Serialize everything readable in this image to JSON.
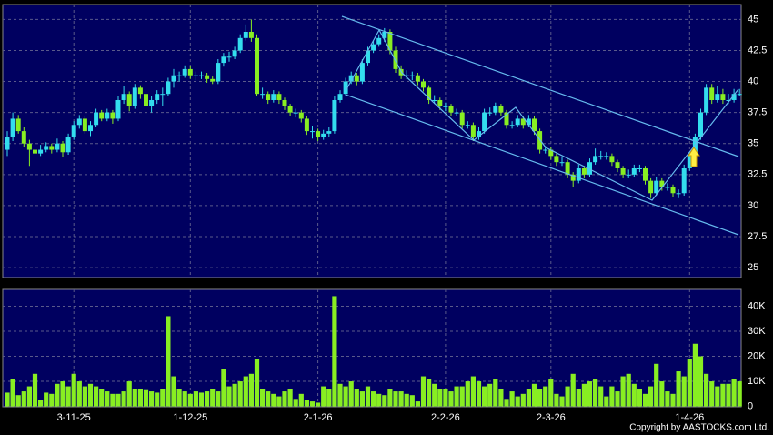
{
  "chart_data": {
    "type": "candlestick",
    "categories": [
      null,
      null,
      null,
      null,
      null,
      null,
      null,
      null,
      null,
      null,
      null,
      null,
      "3-11-25",
      null,
      null,
      null,
      null,
      null,
      null,
      null,
      null,
      null,
      null,
      null,
      null,
      null,
      null,
      null,
      null,
      null,
      null,
      null,
      null,
      "1-12-25",
      null,
      null,
      null,
      null,
      null,
      null,
      null,
      null,
      null,
      null,
      null,
      null,
      null,
      null,
      null,
      null,
      null,
      null,
      null,
      null,
      null,
      null,
      "2-1-26",
      null,
      null,
      null,
      null,
      null,
      null,
      null,
      null,
      null,
      null,
      null,
      null,
      null,
      null,
      null,
      null,
      null,
      null,
      null,
      null,
      null,
      null,
      "2-2-26",
      null,
      null,
      null,
      null,
      null,
      null,
      null,
      null,
      null,
      null,
      null,
      null,
      null,
      null,
      null,
      null,
      null,
      null,
      "2-3-26",
      null,
      null,
      null,
      null,
      null,
      null,
      null,
      null,
      null,
      null,
      null,
      null,
      null,
      null,
      null,
      null,
      null,
      null,
      null,
      null,
      null,
      null,
      null,
      null,
      "1-4-26",
      null,
      null,
      null,
      null,
      null,
      null,
      null,
      null
    ],
    "ohlc": [
      [
        34.5,
        36,
        34,
        35.5
      ],
      [
        35.5,
        37.5,
        35.2,
        37
      ],
      [
        37,
        37.3,
        35.8,
        36
      ],
      [
        36,
        36.3,
        34.7,
        35
      ],
      [
        35,
        35.3,
        33.2,
        34.5
      ],
      [
        34.5,
        34.8,
        33.8,
        34.2
      ],
      [
        34.2,
        34.9,
        34,
        34.5
      ],
      [
        34.5,
        35.1,
        34.3,
        34.8
      ],
      [
        34.8,
        35,
        34.2,
        34.5
      ],
      [
        34.5,
        35.4,
        34.3,
        35
      ],
      [
        35,
        35.2,
        33.9,
        34.3
      ],
      [
        34.3,
        35.8,
        34.1,
        35.5
      ],
      [
        35.5,
        36.8,
        35.3,
        36.5
      ],
      [
        36.5,
        37.3,
        36.2,
        37
      ],
      [
        37,
        37.2,
        35.8,
        36
      ],
      [
        36,
        36.8,
        35.6,
        36.5
      ],
      [
        36.5,
        37.8,
        36.3,
        37.5
      ],
      [
        37.5,
        37.7,
        36.8,
        37
      ],
      [
        37,
        37.8,
        36.8,
        37.5
      ],
      [
        37.5,
        37.7,
        36.6,
        37
      ],
      [
        37,
        38.8,
        36.8,
        38.5
      ],
      [
        38.5,
        39.6,
        38.2,
        39
      ],
      [
        39,
        39.2,
        37.6,
        38
      ],
      [
        38,
        39.8,
        37.8,
        39.5
      ],
      [
        39.5,
        39.7,
        38.6,
        39
      ],
      [
        39,
        39.2,
        37.6,
        38
      ],
      [
        38,
        38.8,
        37.5,
        38.5
      ],
      [
        38.5,
        39.3,
        38.2,
        39
      ],
      [
        39,
        39.5,
        38,
        39
      ],
      [
        39,
        40.3,
        38.8,
        40
      ],
      [
        40,
        41,
        39.5,
        40.5
      ],
      [
        40.5,
        40.8,
        40,
        40.5
      ],
      [
        40.5,
        41.3,
        40.3,
        41
      ],
      [
        41,
        41.2,
        40.2,
        40.5
      ],
      [
        40.5,
        40.8,
        40.1,
        40.5
      ],
      [
        40.5,
        40.8,
        40.2,
        40.5
      ],
      [
        40.5,
        40.7,
        39.9,
        40.2
      ],
      [
        40.2,
        40.4,
        39.8,
        40
      ],
      [
        40,
        41.8,
        39.8,
        41.5
      ],
      [
        41.5,
        42.3,
        41.2,
        42
      ],
      [
        42,
        42.4,
        41.6,
        42
      ],
      [
        42,
        42.8,
        41.8,
        42.5
      ],
      [
        42.5,
        43.8,
        42.3,
        43.5
      ],
      [
        43.5,
        44.6,
        43.3,
        44
      ],
      [
        44,
        45,
        43.2,
        43.5
      ],
      [
        43.5,
        43.8,
        38.8,
        39
      ],
      [
        39,
        39.5,
        38.6,
        39
      ],
      [
        39,
        39.2,
        38.2,
        38.5
      ],
      [
        38.5,
        39.3,
        38.3,
        39
      ],
      [
        39,
        39.2,
        38.2,
        38.5
      ],
      [
        38.5,
        38.7,
        37.7,
        38
      ],
      [
        38,
        38.2,
        37.2,
        37.5
      ],
      [
        37.5,
        37.8,
        37.1,
        37.5
      ],
      [
        37.5,
        37.7,
        36.7,
        37
      ],
      [
        37,
        37.2,
        35.7,
        36
      ],
      [
        36,
        36.4,
        35.4,
        36
      ],
      [
        36,
        36.2,
        35.2,
        35.5
      ],
      [
        35.5,
        36.1,
        35.3,
        35.8
      ],
      [
        35.8,
        36.3,
        35.5,
        36
      ],
      [
        36,
        38.8,
        35.8,
        38.5
      ],
      [
        38.5,
        39.3,
        38.3,
        39
      ],
      [
        39,
        40.3,
        38.8,
        40
      ],
      [
        40,
        40.8,
        39.8,
        40.5
      ],
      [
        40.5,
        40.7,
        39.7,
        40
      ],
      [
        40,
        41.8,
        39.8,
        41.5
      ],
      [
        41.5,
        42.8,
        41.3,
        42.5
      ],
      [
        42.5,
        43.3,
        42.3,
        43
      ],
      [
        43,
        43.8,
        42.8,
        43.5
      ],
      [
        43.5,
        44.3,
        43.2,
        44
      ],
      [
        44,
        44.2,
        42.2,
        42.5
      ],
      [
        42.5,
        42.8,
        40.7,
        41
      ],
      [
        41,
        41.3,
        40.2,
        40.5
      ],
      [
        40.5,
        40.9,
        40.2,
        40.5
      ],
      [
        40.5,
        40.8,
        40.1,
        40.5
      ],
      [
        40.5,
        40.7,
        39.7,
        40
      ],
      [
        40,
        40.2,
        39.2,
        39.5
      ],
      [
        39.5,
        39.7,
        38.2,
        38.5
      ],
      [
        38.5,
        38.9,
        38.2,
        38.5
      ],
      [
        38.5,
        38.7,
        37.7,
        38
      ],
      [
        38,
        38.3,
        37.6,
        38
      ],
      [
        38,
        38.2,
        37.2,
        37.5
      ],
      [
        37.5,
        37.8,
        37.2,
        37.5
      ],
      [
        37.5,
        37.7,
        36.2,
        36.5
      ],
      [
        36.5,
        36.8,
        36.2,
        36.5
      ],
      [
        36.5,
        36.7,
        35.2,
        35.5
      ],
      [
        35.5,
        36.3,
        35.3,
        36
      ],
      [
        36,
        37.8,
        35.8,
        37.5
      ],
      [
        37.5,
        37.9,
        37.2,
        37.5
      ],
      [
        37.5,
        38.3,
        37.3,
        38
      ],
      [
        38,
        38.2,
        37.2,
        37.5
      ],
      [
        37.5,
        37.7,
        36.2,
        36.5
      ],
      [
        36.5,
        36.8,
        36.2,
        36.5
      ],
      [
        36.5,
        37.3,
        36.3,
        37
      ],
      [
        37,
        37.2,
        36.2,
        36.5
      ],
      [
        36.5,
        37.3,
        36.3,
        37
      ],
      [
        37,
        37.2,
        35.7,
        36
      ],
      [
        36,
        36.2,
        34.2,
        34.5
      ],
      [
        34.5,
        34.8,
        34.2,
        34.5
      ],
      [
        34.5,
        34.7,
        33.7,
        34
      ],
      [
        34,
        34.2,
        33.2,
        33.5
      ],
      [
        33.5,
        33.9,
        33.2,
        33.5
      ],
      [
        33.5,
        33.7,
        32.2,
        32.5
      ],
      [
        32.5,
        32.7,
        31.5,
        32
      ],
      [
        32,
        33.3,
        31.8,
        33
      ],
      [
        33,
        33.2,
        32.2,
        32.5
      ],
      [
        32.5,
        33.8,
        32.3,
        33.5
      ],
      [
        33.5,
        34.6,
        33.3,
        34
      ],
      [
        34,
        34.4,
        33.7,
        34
      ],
      [
        34,
        34.3,
        33.7,
        34
      ],
      [
        34,
        34.2,
        33.2,
        33.5
      ],
      [
        33.5,
        33.7,
        32.7,
        33
      ],
      [
        33,
        33.2,
        32.2,
        32.5
      ],
      [
        32.5,
        32.9,
        32.2,
        32.5
      ],
      [
        32.5,
        33.3,
        32.3,
        33
      ],
      [
        33,
        33.3,
        32.7,
        33
      ],
      [
        33,
        33.2,
        31.7,
        32
      ],
      [
        32,
        32.2,
        30.6,
        31
      ],
      [
        31,
        32.3,
        30.8,
        32
      ],
      [
        32,
        32.2,
        31.2,
        31.5
      ],
      [
        31.5,
        31.8,
        31.2,
        31.5
      ],
      [
        31.5,
        31.7,
        30.7,
        31
      ],
      [
        31,
        31.3,
        30.6,
        31
      ],
      [
        31,
        33.3,
        30.8,
        33
      ],
      [
        33,
        34.3,
        32.8,
        34
      ],
      [
        34,
        35.8,
        33.8,
        35.5
      ],
      [
        35.5,
        37.8,
        35.3,
        37.5
      ],
      [
        37.5,
        39.8,
        37.3,
        39.5
      ],
      [
        39.5,
        39.8,
        38.2,
        38.5
      ],
      [
        38.5,
        39.6,
        38.3,
        39
      ],
      [
        39,
        39.4,
        38.2,
        38.5
      ],
      [
        38.5,
        39,
        38.2,
        38.5
      ],
      [
        38.5,
        39.4,
        38.3,
        39
      ],
      [
        39,
        39.4,
        38.8,
        39
      ]
    ],
    "up_color": "#33ddee",
    "down_color": "#88ee22",
    "ylim": [
      24.2,
      46.2
    ],
    "yticks": [
      25,
      27.5,
      30,
      32.5,
      35,
      37.5,
      40,
      42.5,
      45
    ],
    "grid": true,
    "volume": {
      "color": "#88ee22",
      "values": [
        5500,
        11000,
        4500,
        6000,
        8000,
        13000,
        2500,
        5500,
        5000,
        9000,
        10000,
        8000,
        13000,
        10000,
        8000,
        9000,
        8000,
        7000,
        6000,
        5000,
        5000,
        6000,
        10000,
        7000,
        7000,
        6500,
        6000,
        5500,
        7000,
        36000,
        12000,
        7000,
        6000,
        5000,
        6000,
        5500,
        6000,
        7000,
        6000,
        15000,
        8000,
        9000,
        10000,
        12000,
        13000,
        19000,
        7000,
        6000,
        5000,
        4000,
        6000,
        7000,
        3000,
        5000,
        2500,
        2000,
        1500,
        8000,
        7000,
        44000,
        9000,
        8000,
        10000,
        7000,
        6000,
        8000,
        6000,
        5000,
        4500,
        7000,
        6000,
        6000,
        5000,
        4500,
        2000,
        12000,
        11000,
        9000,
        7000,
        7000,
        6000,
        8000,
        8000,
        10000,
        12000,
        10000,
        8000,
        9000,
        11000,
        7000,
        3000,
        6000,
        4000,
        5000,
        7000,
        9000,
        7000,
        8000,
        11000,
        5000,
        4000,
        8000,
        13000,
        7000,
        9000,
        10000,
        11000,
        8000,
        4000,
        8000,
        6000,
        12000,
        13000,
        9000,
        7000,
        5000,
        8000,
        17000,
        10000,
        6000,
        5000,
        14000,
        12000,
        19000,
        25000,
        20000,
        13000,
        10000,
        8000,
        9000,
        9000,
        11000,
        10000
      ],
      "ylim": [
        -150,
        46700
      ],
      "yticks": [
        0,
        {
          "value": 10000,
          "label": "10K"
        },
        {
          "value": 20000,
          "label": "20K"
        },
        {
          "value": 30000,
          "label": "30K"
        },
        {
          "value": 40000,
          "label": "40K"
        }
      ]
    }
  },
  "copyright": "Copyright by AASTOCKS.com Ltd."
}
